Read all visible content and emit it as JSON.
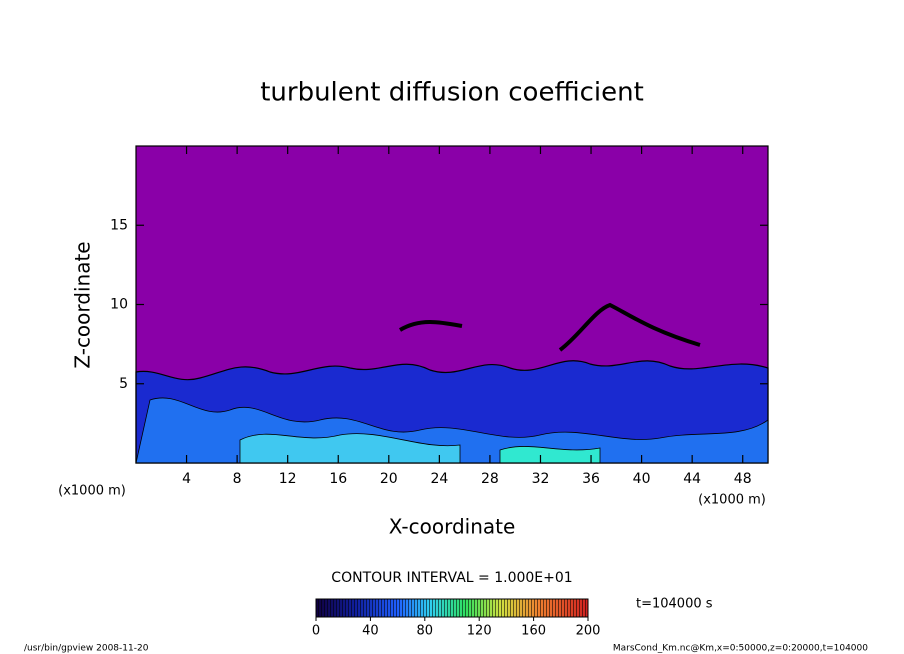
{
  "chart_data": {
    "type": "contour",
    "title": "turbulent diffusion coefficient",
    "xlabel": "X-coordinate",
    "ylabel": "Z-coordinate",
    "xunit": "(x1000 m)",
    "xlim": [
      0,
      50
    ],
    "xticks": [
      4,
      8,
      12,
      16,
      20,
      24,
      28,
      32,
      36,
      40,
      44,
      48
    ],
    "ylim": [
      0,
      20
    ],
    "yticks": [
      5,
      10,
      15
    ],
    "contour_interval": "CONTOUR INTERVAL = 1.000E+01",
    "clim": [
      0,
      200
    ],
    "cticks": [
      0,
      40,
      80,
      120,
      160,
      200
    ],
    "time_label": "t=104000 s",
    "footer_left": "/usr/bin/gpview  2008-11-20",
    "footer_right": "MarsCond_Km.nc@Km,x=0:50000,z=0:20000,t=104000"
  }
}
